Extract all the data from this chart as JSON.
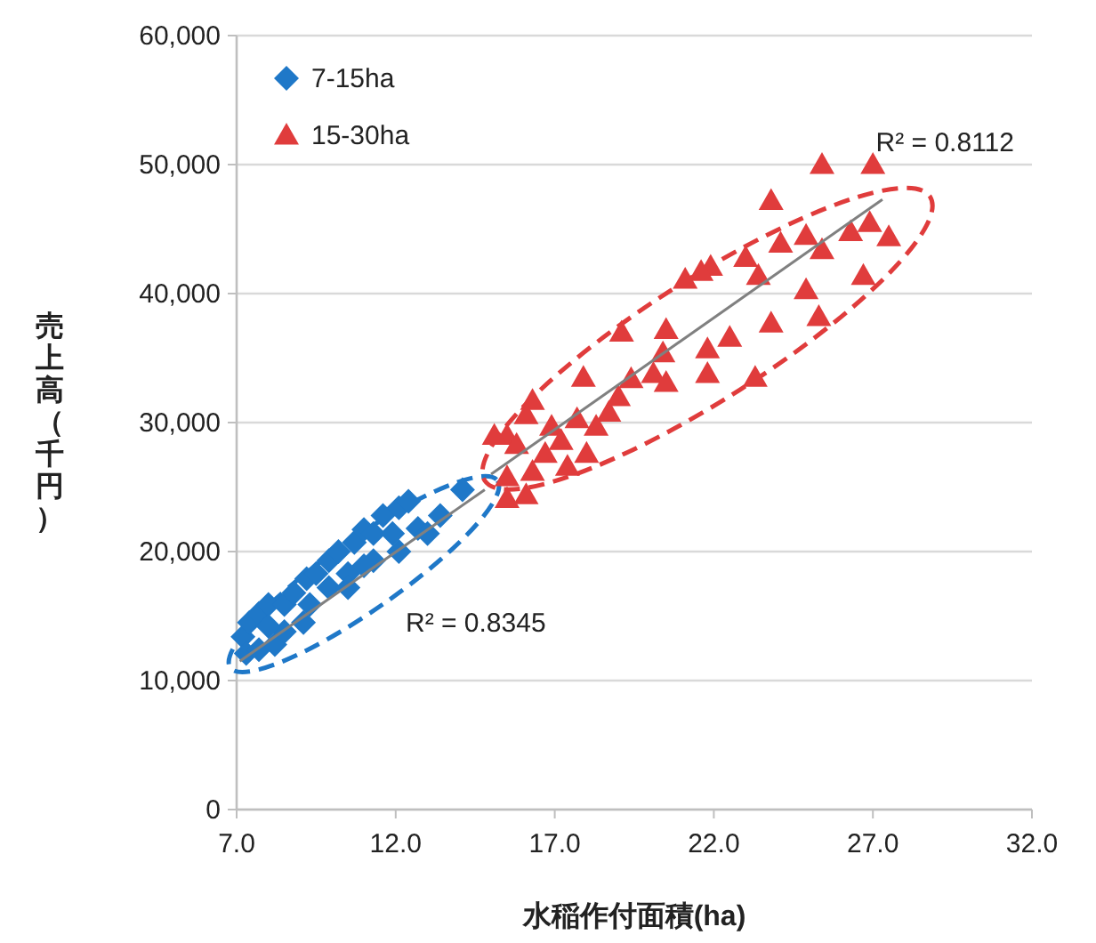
{
  "chart_data": {
    "type": "scatter",
    "xlabel": "水稲作付面積(ha)",
    "ylabel": "売上高（千円）",
    "xlim": [
      7,
      32
    ],
    "xticks": [
      {
        "value": 7,
        "label": "7.0"
      },
      {
        "value": 12,
        "label": "12.0"
      },
      {
        "value": 17,
        "label": "17.0"
      },
      {
        "value": 22,
        "label": "22.0"
      },
      {
        "value": 27,
        "label": "27.0"
      },
      {
        "value": 32,
        "label": "32.0"
      }
    ],
    "ylim": [
      0,
      60000
    ],
    "yticks": [
      0,
      {
        "value": 10000,
        "label": "10,000"
      },
      {
        "value": 20000,
        "label": "20,000"
      },
      {
        "value": 30000,
        "label": "30,000"
      },
      {
        "value": 40000,
        "label": "40,000"
      },
      {
        "value": 50000,
        "label": "50,000"
      },
      {
        "value": 60000,
        "label": "60,000"
      }
    ],
    "grid": "y",
    "legend": "top left",
    "annotations": [
      "R² = 0.8345",
      "R² = 0.8112"
    ],
    "series": [
      {
        "name": "7-15ha",
        "color": "#1f78c8",
        "marker": "diamond",
        "x": [
          7.2,
          7.4,
          7.7,
          8.0,
          7.3,
          7.7,
          8.2,
          8.5,
          8.8,
          9.2,
          9.5,
          9.9,
          10.2,
          10.7,
          11.0,
          11.3,
          11.6,
          12.1,
          12.4,
          14.1,
          13.4,
          11.9,
          12.1,
          11.3,
          10.5,
          9.9,
          9.3,
          8.5,
          9.1,
          8.0,
          12.7,
          13.0,
          11.0,
          10.5
        ],
        "values": [
          13400,
          14500,
          15200,
          15900,
          12100,
          12400,
          12800,
          15900,
          16800,
          17900,
          18300,
          19300,
          20000,
          20700,
          21700,
          21400,
          22800,
          23400,
          23900,
          24800,
          22800,
          21400,
          20000,
          19300,
          18300,
          17200,
          15900,
          13800,
          14500,
          14200,
          21800,
          21400,
          18900,
          17200
        ]
      },
      {
        "name": "15-30ha",
        "color": "#e03c3c",
        "marker": "triangle",
        "x": [
          25.4,
          27.0,
          23.8,
          27.5,
          26.9,
          26.3,
          25.4,
          24.9,
          24.1,
          23.0,
          23.4,
          21.9,
          21.6,
          21.1,
          26.7,
          25.3,
          24.9,
          23.8,
          22.5,
          21.8,
          21.8,
          23.3,
          20.5,
          20.4,
          19.1,
          20.1,
          20.5,
          19.4,
          19.0,
          17.9,
          18.7,
          18.3,
          16.9,
          17.7,
          16.3,
          16.1,
          15.5,
          15.1,
          15.8,
          16.7,
          17.4,
          18.0,
          16.3,
          15.5,
          15.5,
          16.1,
          17.2
        ],
        "values": [
          50000,
          50000,
          47200,
          44400,
          45500,
          44800,
          43400,
          44500,
          43900,
          42800,
          41400,
          42100,
          41700,
          41100,
          41400,
          38200,
          40300,
          37700,
          36600,
          35700,
          33800,
          33500,
          37200,
          35400,
          37000,
          33800,
          33100,
          33400,
          32000,
          33500,
          30800,
          29700,
          29700,
          30300,
          31700,
          30600,
          29000,
          29000,
          28300,
          27600,
          26600,
          27600,
          26200,
          25800,
          24100,
          24400,
          28600
        ]
      },
      {
        "type": "line",
        "color": "#808080",
        "marker": "none",
        "x": [
          7.1,
          14.8
        ],
        "values": [
          11500,
          24800
        ]
      },
      {
        "type": "line",
        "color": "#808080",
        "marker": "none",
        "x": [
          15.0,
          27.3
        ],
        "values": [
          26000,
          47300
        ]
      }
    ]
  }
}
